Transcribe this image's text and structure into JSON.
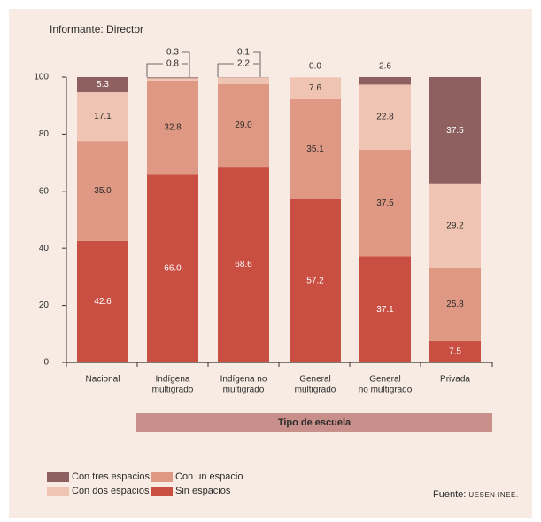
{
  "informant_label": "Informante: Director",
  "x_axis_title": "Tipo de escuela",
  "source": {
    "prefix": "Fuente:",
    "text": "UESEN INEE."
  },
  "chart_data": {
    "type": "bar",
    "stacked": true,
    "title": "",
    "xlabel": "Tipo de escuela",
    "ylabel": "",
    "ylim": [
      0,
      100
    ],
    "yticks": [
      "0",
      "20",
      "40",
      "60",
      "80",
      "100"
    ],
    "categories": [
      [
        "Nacional"
      ],
      [
        "Indígena",
        "multigrado"
      ],
      [
        "Indígena no",
        "multigrado"
      ],
      [
        "General",
        "multigrado"
      ],
      [
        "General",
        "no multigrado"
      ],
      [
        "Privada"
      ]
    ],
    "series": [
      {
        "name": "Sin espacios",
        "color": "#c94f42",
        "values": [
          42.6,
          66.0,
          68.6,
          57.2,
          37.1,
          7.5
        ],
        "labels": [
          "42.6",
          "66.0",
          "68.6",
          "57.2",
          "37.1",
          "7.5"
        ]
      },
      {
        "name": "Con un espacio",
        "color": "#df9883",
        "values": [
          35.0,
          32.8,
          29.0,
          35.1,
          37.5,
          25.8
        ],
        "labels": [
          "35.0",
          "32.8",
          "29.0",
          "35.1",
          "37.5",
          "25.8"
        ]
      },
      {
        "name": "Con dos espacios",
        "color": "#f0c4b3",
        "values": [
          17.1,
          0.8,
          2.2,
          7.6,
          22.8,
          29.2
        ],
        "labels": [
          "17.1",
          "0.8",
          "2.2",
          "7.6",
          "22.8",
          "29.2"
        ]
      },
      {
        "name": "Con tres espacios",
        "color": "#8e6060",
        "values": [
          5.3,
          0.3,
          0.1,
          0.0,
          2.6,
          37.5
        ],
        "labels": [
          "5.3",
          "0.3",
          "0.1",
          "0.0",
          "2.6",
          "37.5"
        ]
      }
    ],
    "legend": [
      {
        "name": "Con tres espacios",
        "color": "#8e6060"
      },
      {
        "name": "Con un espacio",
        "color": "#df9883"
      },
      {
        "name": "Con dos espacios",
        "color": "#f0c4b3"
      },
      {
        "name": "Sin espacios",
        "color": "#c94f42"
      }
    ],
    "legend_position": "bottom-left",
    "grid": false
  }
}
